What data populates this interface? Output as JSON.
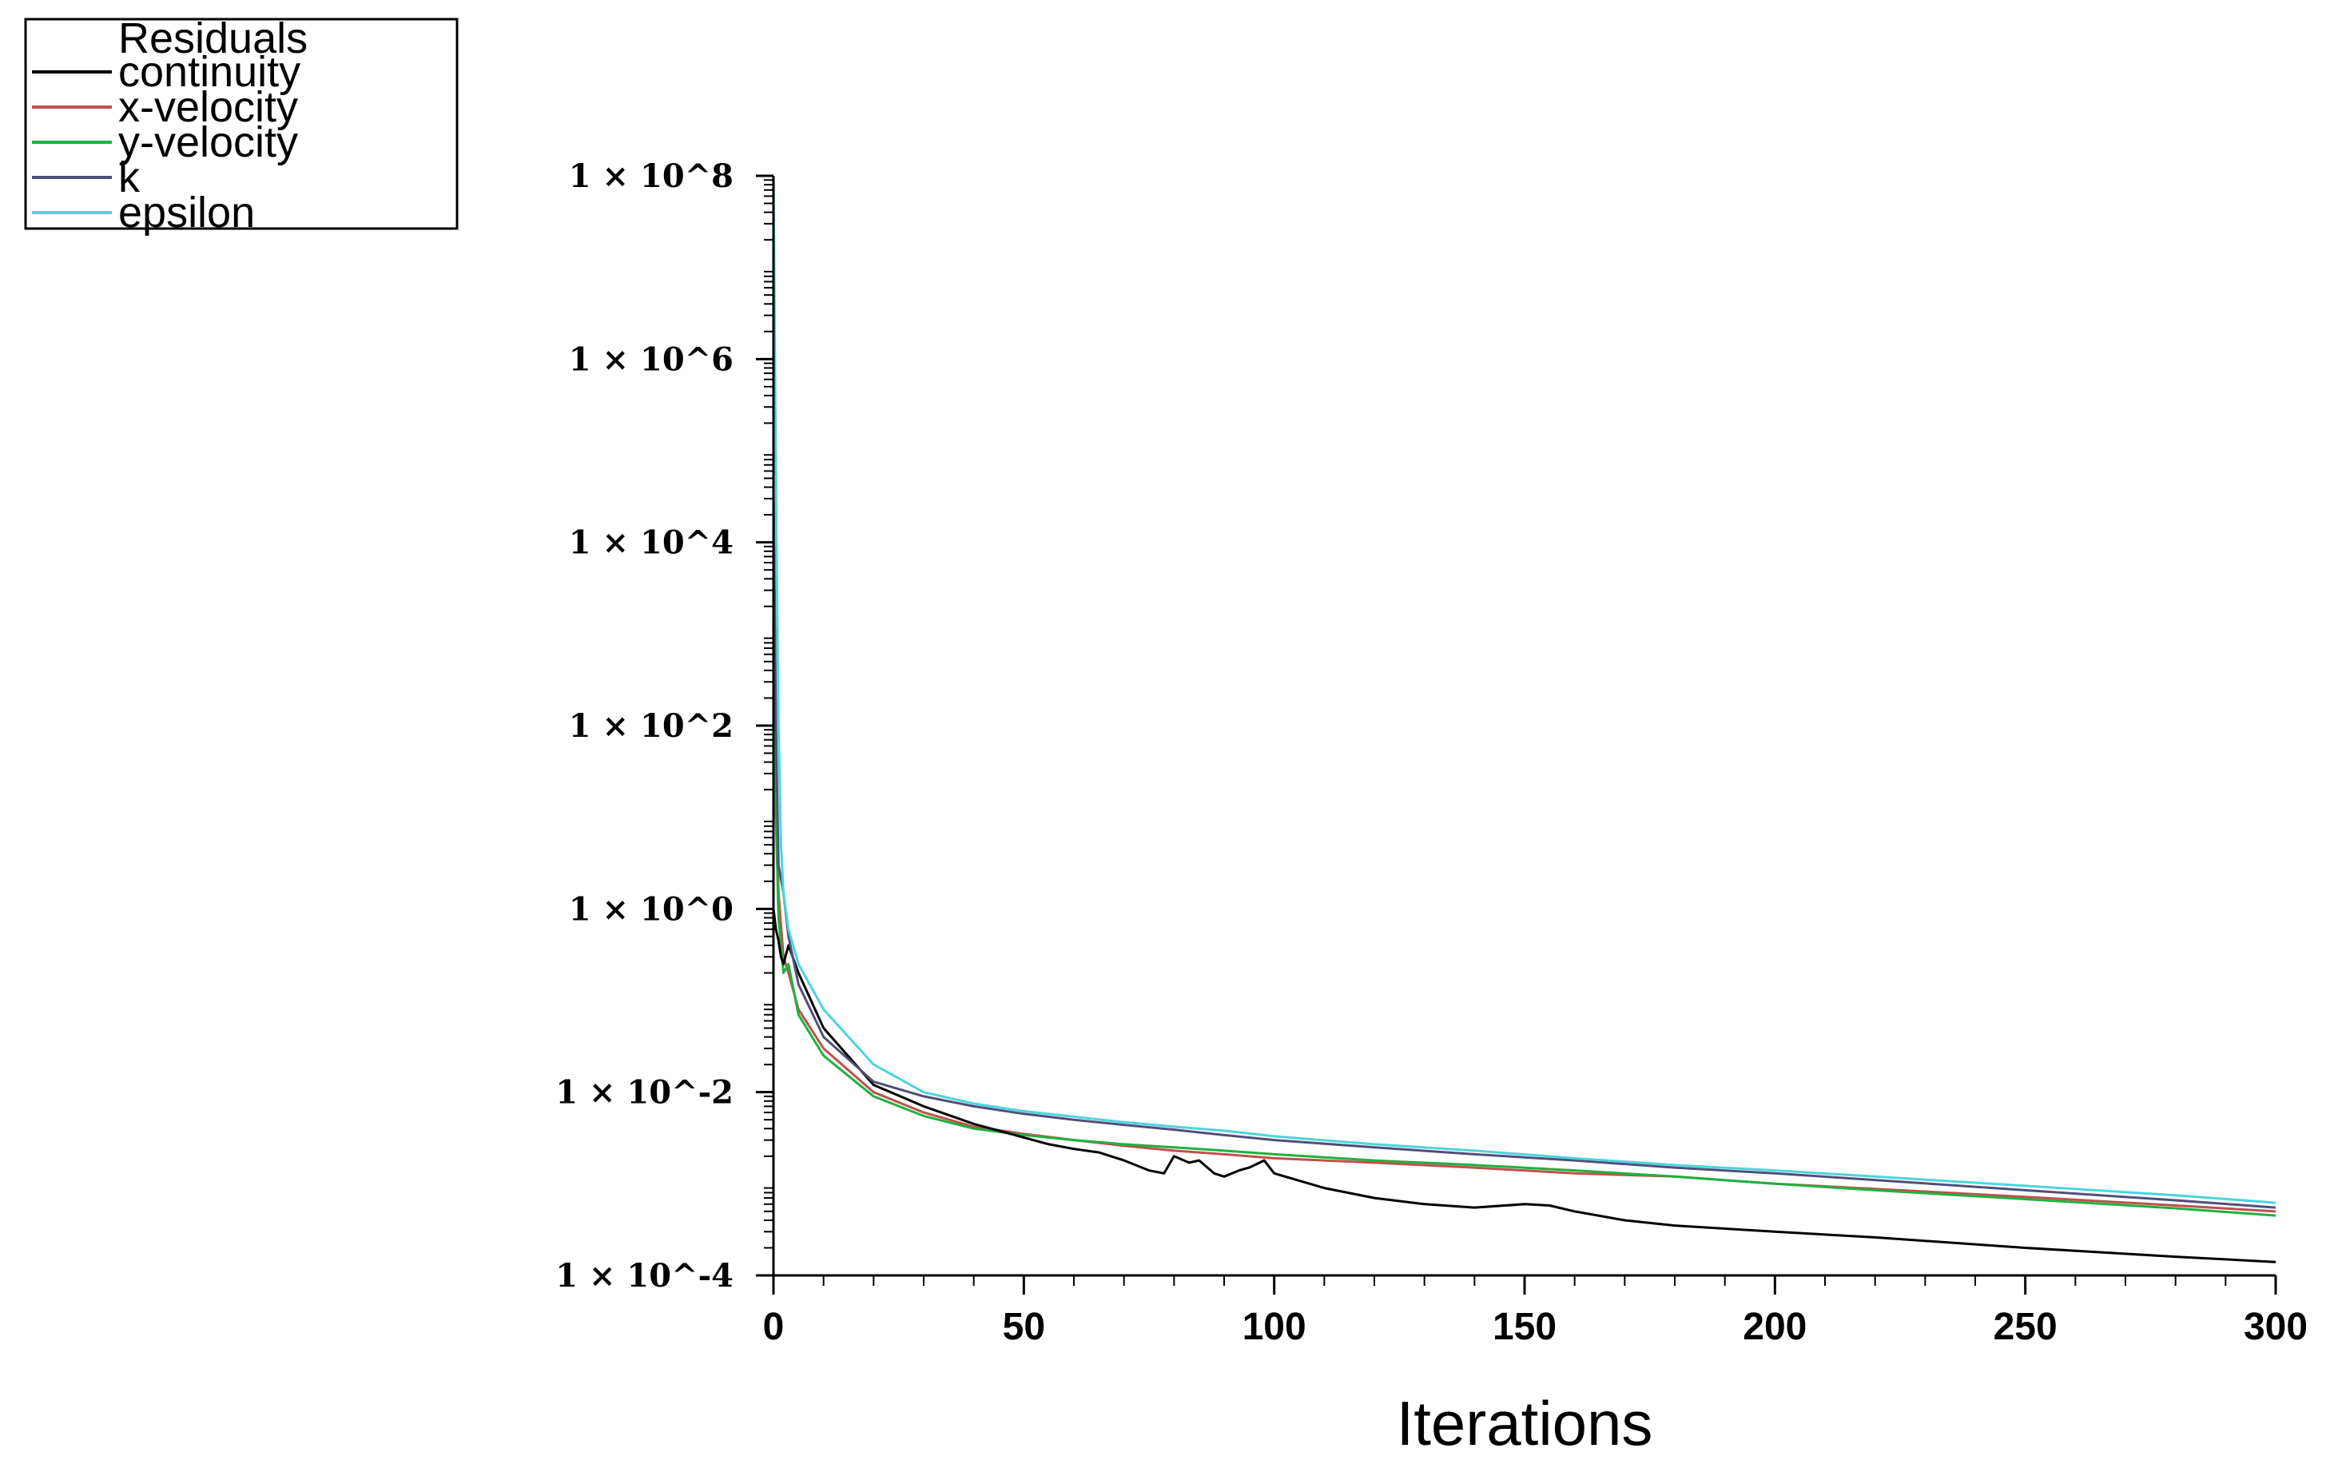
{
  "chart_data": {
    "type": "line",
    "xlabel": "Iterations",
    "ylabel": "",
    "xlim": [
      0,
      300
    ],
    "ylim": [
      0.0001,
      100000000
    ],
    "yscale": "log",
    "grid": false,
    "x_ticks": [
      {
        "value": 0,
        "label": "0"
      },
      {
        "value": 50,
        "label": "50"
      },
      {
        "value": 100,
        "label": "100"
      },
      {
        "value": 150,
        "label": "150"
      },
      {
        "value": 200,
        "label": "200"
      },
      {
        "value": 250,
        "label": "250"
      },
      {
        "value": 300,
        "label": "300"
      }
    ],
    "y_ticks": [
      {
        "value": 100000000,
        "label": "1 × 10^8"
      },
      {
        "value": 1000000,
        "label": "1 × 10^6"
      },
      {
        "value": 10000,
        "label": "1 × 10^4"
      },
      {
        "value": 100,
        "label": "1 × 10^2"
      },
      {
        "value": 1,
        "label": "1 × 10^0"
      },
      {
        "value": 0.01,
        "label": "1 × 10^-2"
      },
      {
        "value": 0.0001,
        "label": "1 × 10^-4"
      }
    ],
    "legend": {
      "title": "Residuals",
      "placement": "top-left"
    },
    "series": [
      {
        "name": "continuity",
        "color": "#000000",
        "x": [
          0,
          0.5,
          1,
          1.5,
          2,
          3,
          5,
          10,
          20,
          30,
          40,
          50,
          55,
          60,
          65,
          70,
          75,
          78,
          80,
          83,
          85,
          88,
          90,
          93,
          95,
          98,
          100,
          110,
          120,
          130,
          140,
          150,
          155,
          160,
          170,
          180,
          200,
          220,
          250,
          280,
          300
        ],
        "y": [
          1,
          0.6,
          0.45,
          0.3,
          0.25,
          0.4,
          0.2,
          0.05,
          0.012,
          0.007,
          0.0045,
          0.0032,
          0.0027,
          0.0024,
          0.0022,
          0.0018,
          0.0014,
          0.0013,
          0.002,
          0.0017,
          0.0018,
          0.0013,
          0.0012,
          0.0014,
          0.0015,
          0.0018,
          0.0013,
          0.0009,
          0.0007,
          0.0006,
          0.00055,
          0.0006,
          0.00058,
          0.0005,
          0.0004,
          0.00035,
          0.0003,
          0.00026,
          0.0002,
          0.00016,
          0.00014
        ]
      },
      {
        "name": "x-velocity",
        "color": "#c0504d",
        "x": [
          0,
          0.5,
          1,
          2,
          3,
          5,
          10,
          20,
          30,
          40,
          50,
          60,
          70,
          80,
          90,
          100,
          120,
          140,
          160,
          180,
          200,
          220,
          250,
          280,
          300
        ],
        "y": [
          1000,
          20,
          1.5,
          0.3,
          0.2,
          0.08,
          0.03,
          0.01,
          0.006,
          0.0042,
          0.0035,
          0.003,
          0.0026,
          0.0023,
          0.0021,
          0.0019,
          0.0017,
          0.0015,
          0.0013,
          0.0012,
          0.001,
          0.00088,
          0.00072,
          0.00058,
          0.0005
        ]
      },
      {
        "name": "y-velocity",
        "color": "#1fb13f",
        "x": [
          0,
          0.5,
          1,
          2,
          3,
          5,
          10,
          20,
          30,
          40,
          50,
          60,
          70,
          80,
          90,
          100,
          120,
          140,
          160,
          180,
          200,
          220,
          250,
          280,
          300
        ],
        "y": [
          1000,
          10,
          0.8,
          0.2,
          0.25,
          0.07,
          0.025,
          0.009,
          0.0055,
          0.004,
          0.0034,
          0.003,
          0.0027,
          0.0025,
          0.0023,
          0.0021,
          0.0018,
          0.0016,
          0.0014,
          0.0012,
          0.001,
          0.00085,
          0.00068,
          0.00054,
          0.00045
        ]
      },
      {
        "name": "k",
        "color": "#4f4f7a",
        "x": [
          0,
          0.5,
          1,
          2,
          3,
          5,
          10,
          20,
          30,
          40,
          50,
          60,
          70,
          80,
          90,
          100,
          120,
          140,
          160,
          180,
          200,
          220,
          250,
          280,
          300
        ],
        "y": [
          50000,
          100,
          3,
          1.5,
          0.5,
          0.15,
          0.04,
          0.013,
          0.009,
          0.007,
          0.0058,
          0.005,
          0.0044,
          0.0039,
          0.0034,
          0.003,
          0.0025,
          0.0021,
          0.0018,
          0.0015,
          0.0013,
          0.0011,
          0.00085,
          0.00066,
          0.00055
        ]
      },
      {
        "name": "epsilon",
        "color": "#4dd4dc",
        "x": [
          0,
          0.3,
          0.6,
          1,
          1.5,
          2,
          3,
          5,
          10,
          20,
          30,
          40,
          50,
          60,
          70,
          80,
          90,
          100,
          120,
          140,
          160,
          180,
          200,
          220,
          250,
          280,
          300
        ],
        "y": [
          100000000,
          1000000,
          10000,
          100,
          5,
          1.5,
          0.6,
          0.25,
          0.08,
          0.02,
          0.01,
          0.0075,
          0.0062,
          0.0054,
          0.0047,
          0.0042,
          0.0038,
          0.0033,
          0.0027,
          0.0023,
          0.0019,
          0.0016,
          0.0014,
          0.0012,
          0.00095,
          0.00075,
          0.00062
        ]
      }
    ]
  }
}
